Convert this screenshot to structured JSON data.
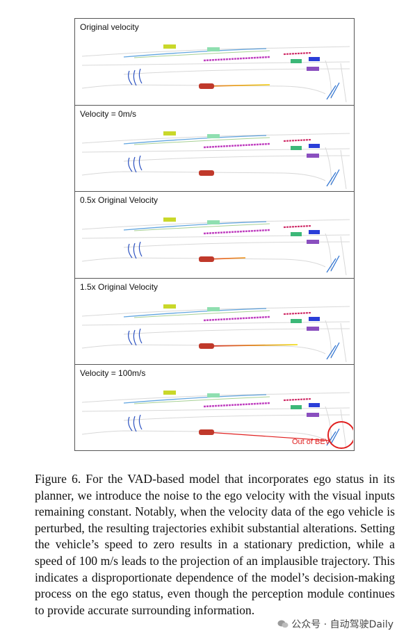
{
  "figure": {
    "panels": [
      {
        "label": "Original velocity",
        "trajectory": "long"
      },
      {
        "label": "Velocity = 0m/s",
        "trajectory": "stationary"
      },
      {
        "label": "0.5x Original Velocity",
        "trajectory": "half"
      },
      {
        "label": "1.5x Original Velocity",
        "trajectory": "extended"
      },
      {
        "label": "Velocity = 100m/s",
        "trajectory": "implausible",
        "callout": "Out of BEV"
      }
    ]
  },
  "caption": {
    "label": "Figure 6.",
    "text": "For the VAD-based model that incorporates ego status in its planner, we introduce the noise to the ego velocity with the visual inputs remaining constant. Notably, when the velocity data of the ego vehicle is perturbed, the resulting trajectories exhibit substantial alterations. Setting the vehicle’s speed to zero results in a stationary prediction, while a speed of 100 m/s leads to the projection of an implausible trajectory. This indicates a disproportionate dependence of the model’s decision-making process on the ego status, even though the perception module continues to provide accurate surrounding information."
  },
  "watermark": {
    "text": "公众号 · 自动驾驶Daily",
    "icon": "wechat-icon"
  },
  "colors": {
    "ego": "#c0392b",
    "callout": "#e02020",
    "lane": "#d8d8d8"
  }
}
